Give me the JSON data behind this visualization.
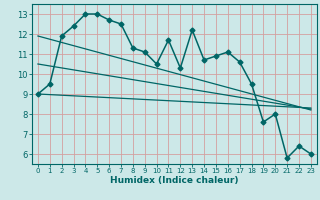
{
  "xlabel": "Humidex (Indice chaleur)",
  "bg_color": "#cce8e8",
  "grid_color": "#d4a0a0",
  "line_color": "#006666",
  "xlim": [
    -0.5,
    23.5
  ],
  "ylim": [
    5.5,
    13.5
  ],
  "xticks": [
    0,
    1,
    2,
    3,
    4,
    5,
    6,
    7,
    8,
    9,
    10,
    11,
    12,
    13,
    14,
    15,
    16,
    17,
    18,
    19,
    20,
    21,
    22,
    23
  ],
  "yticks": [
    6,
    7,
    8,
    9,
    10,
    11,
    12,
    13
  ],
  "data_x": [
    0,
    1,
    2,
    3,
    4,
    5,
    6,
    7,
    8,
    9,
    10,
    11,
    12,
    13,
    14,
    15,
    16,
    17,
    18,
    19,
    20,
    21,
    22,
    23
  ],
  "data_y": [
    9.0,
    9.5,
    11.9,
    12.4,
    13.0,
    13.0,
    12.7,
    12.5,
    11.3,
    11.1,
    10.5,
    11.7,
    10.3,
    12.2,
    10.7,
    10.9,
    11.1,
    10.6,
    9.5,
    7.6,
    8.0,
    5.8,
    6.4,
    6.0
  ],
  "trend1_x": [
    0,
    23
  ],
  "trend1_y": [
    11.9,
    8.2
  ],
  "trend2_x": [
    0,
    23
  ],
  "trend2_y": [
    9.0,
    8.3
  ],
  "trend3_x": [
    0,
    23
  ],
  "trend3_y": [
    10.5,
    8.25
  ]
}
